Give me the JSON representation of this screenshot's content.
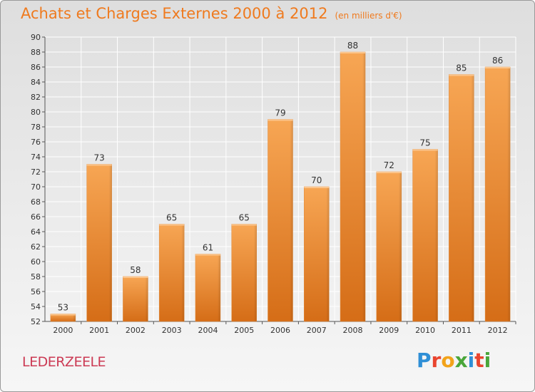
{
  "title": "Achats et Charges Externes 2000 à 2012",
  "unit_note": "(en milliers d'€)",
  "commune": "LEDERZEELE",
  "brand": {
    "text": "Proxiti",
    "letters": [
      {
        "ch": "P",
        "color": "#2f8fd6"
      },
      {
        "ch": "r",
        "color": "#e9452f"
      },
      {
        "ch": "o",
        "color": "#f2a31a"
      },
      {
        "ch": "x",
        "color": "#4aa63a"
      },
      {
        "ch": "i",
        "color": "#2f8fd6"
      },
      {
        "ch": "t",
        "color": "#e9452f"
      },
      {
        "ch": "i",
        "color": "#4aa63a"
      }
    ]
  },
  "colors": {
    "title": "#ef7a1e",
    "bar_top": "#f7a654",
    "bar_bottom": "#d56d17",
    "grid": "#ffffff",
    "commune": "#cc3b55"
  },
  "chart_data": {
    "type": "bar",
    "categories": [
      "2000",
      "2001",
      "2002",
      "2003",
      "2004",
      "2005",
      "2006",
      "2007",
      "2008",
      "2009",
      "2010",
      "2011",
      "2012"
    ],
    "values": [
      53,
      73,
      58,
      65,
      61,
      65,
      79,
      70,
      88,
      72,
      75,
      85,
      86
    ],
    "ylim": [
      52,
      90
    ],
    "yticks": [
      52,
      54,
      56,
      58,
      60,
      62,
      64,
      66,
      68,
      70,
      72,
      74,
      76,
      78,
      80,
      82,
      84,
      86,
      88,
      90
    ],
    "grid": true,
    "data_labels": true
  }
}
